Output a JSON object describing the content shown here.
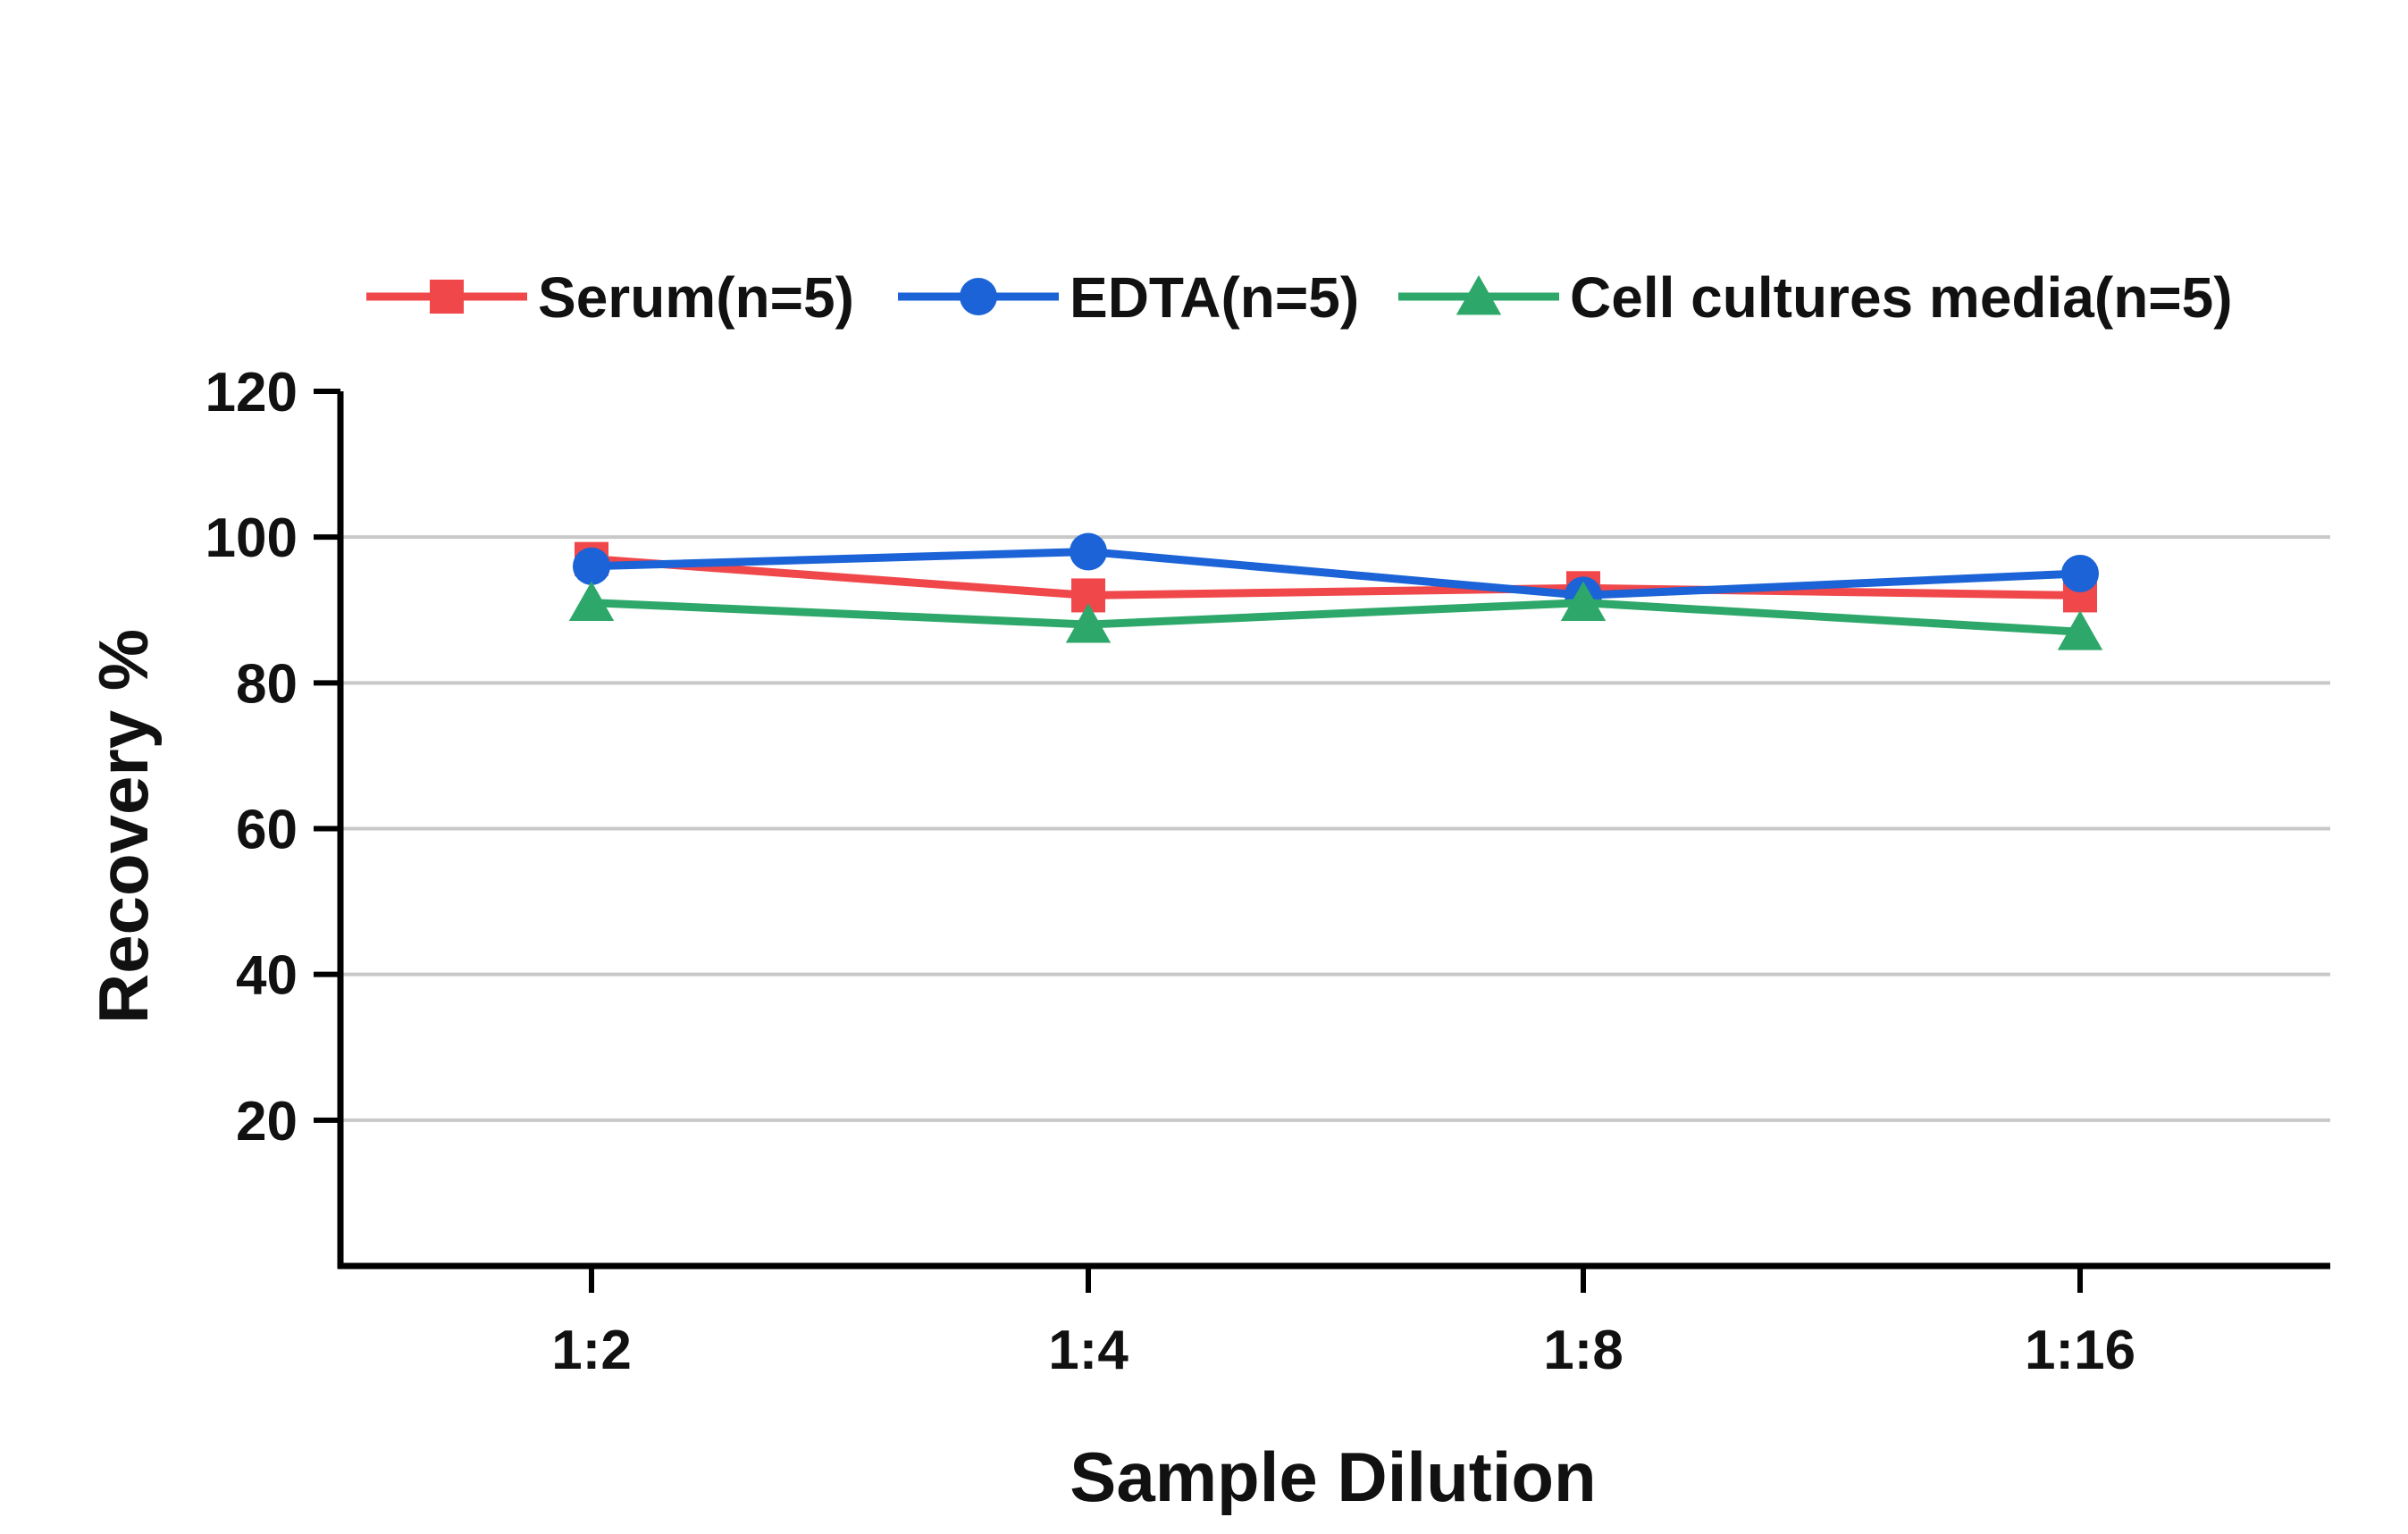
{
  "chart_data": {
    "type": "line",
    "categories": [
      "1:2",
      "1:4",
      "1:8",
      "1:16"
    ],
    "series": [
      {
        "name": "Serum(n=5)",
        "values": [
          97,
          92,
          93,
          92
        ],
        "color": "#f0474a",
        "marker": "square"
      },
      {
        "name": "EDTA(n=5)",
        "values": [
          96,
          98,
          92,
          95
        ],
        "color": "#1b63d6",
        "marker": "circle"
      },
      {
        "name": "Cell cultures media(n=5)",
        "values": [
          91,
          88,
          91,
          87
        ],
        "color": "#2ea86a",
        "marker": "triangle"
      }
    ],
    "title": "",
    "xlabel": "Sample Dilution",
    "ylabel": "Recovery %",
    "ylim": [
      0,
      120
    ],
    "yticks": [
      20,
      40,
      60,
      80,
      100,
      120
    ],
    "grid": true,
    "legend_position": "top"
  }
}
